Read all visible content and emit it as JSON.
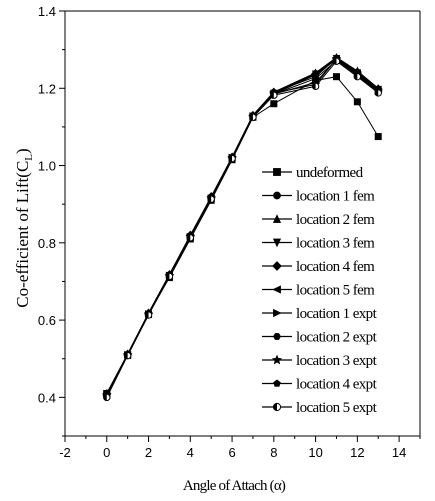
{
  "chart_data": {
    "type": "line",
    "xlabel": "Angle of Attach (α)",
    "ylabel": "Co-efficient of Lift(C",
    "ylabel_sub": "L",
    "ylabel_close": ")",
    "xlim": [
      -2,
      15
    ],
    "ylim": [
      0.3,
      1.4
    ],
    "xticks": [
      "-2",
      "0",
      "2",
      "4",
      "6",
      "8",
      "10",
      "12",
      "14"
    ],
    "yticks": [
      "0.4",
      "0.6",
      "0.8",
      "1.0",
      "1.2",
      "1.4"
    ],
    "legend_position": "center-right",
    "series": [
      {
        "name": "undeformed",
        "marker": "square",
        "x": [
          0,
          1,
          2,
          3,
          4,
          5,
          6,
          7,
          8,
          10,
          11,
          12,
          13
        ],
        "y": [
          0.41,
          0.51,
          0.615,
          0.71,
          0.81,
          0.91,
          1.015,
          1.125,
          1.16,
          1.22,
          1.23,
          1.165,
          1.075
        ]
      },
      {
        "name": "location 1 fem",
        "marker": "circle",
        "x": [
          0,
          1,
          2,
          3,
          4,
          5,
          6,
          7,
          8,
          10,
          11,
          12,
          13
        ],
        "y": [
          0.405,
          0.51,
          0.615,
          0.715,
          0.815,
          0.915,
          1.02,
          1.128,
          1.185,
          1.235,
          1.275,
          1.235,
          1.195
        ]
      },
      {
        "name": "location 2 fem",
        "marker": "triangle-up",
        "x": [
          0,
          1,
          2,
          3,
          4,
          5,
          6,
          7,
          8,
          10,
          11,
          12,
          13
        ],
        "y": [
          0.41,
          0.512,
          0.618,
          0.718,
          0.818,
          0.918,
          1.022,
          1.13,
          1.19,
          1.24,
          1.28,
          1.245,
          1.2
        ]
      },
      {
        "name": "location 3 fem",
        "marker": "triangle-down",
        "x": [
          0,
          1,
          2,
          3,
          4,
          5,
          6,
          7,
          8,
          10,
          11,
          12,
          13
        ],
        "y": [
          0.405,
          0.51,
          0.615,
          0.715,
          0.815,
          0.915,
          1.02,
          1.128,
          1.187,
          1.237,
          1.277,
          1.24,
          1.197
        ]
      },
      {
        "name": "location 4 fem",
        "marker": "diamond",
        "x": [
          0,
          1,
          2,
          3,
          4,
          5,
          6,
          7,
          8,
          10,
          11,
          12,
          13
        ],
        "y": [
          0.41,
          0.512,
          0.618,
          0.718,
          0.82,
          0.92,
          1.022,
          1.13,
          1.19,
          1.238,
          1.278,
          1.242,
          1.198
        ]
      },
      {
        "name": "location 5 fem",
        "marker": "triangle-left",
        "x": [
          0,
          1,
          2,
          3,
          4,
          5,
          6,
          7,
          8,
          10,
          11,
          12,
          13
        ],
        "y": [
          0.405,
          0.508,
          0.615,
          0.715,
          0.815,
          0.915,
          1.02,
          1.128,
          1.186,
          1.236,
          1.276,
          1.238,
          1.196
        ]
      },
      {
        "name": "location 1 expt",
        "marker": "triangle-right",
        "x": [
          0,
          1,
          2,
          3,
          4,
          5,
          6,
          7,
          8,
          10,
          11,
          12,
          13
        ],
        "y": [
          0.41,
          0.51,
          0.616,
          0.716,
          0.816,
          0.916,
          1.021,
          1.128,
          1.185,
          1.225,
          1.272,
          1.235,
          1.192
        ]
      },
      {
        "name": "location 2 expt",
        "marker": "hexagon",
        "x": [
          0,
          1,
          2,
          3,
          4,
          5,
          6,
          7,
          8,
          10,
          11,
          12,
          13
        ],
        "y": [
          0.405,
          0.51,
          0.615,
          0.715,
          0.815,
          0.915,
          1.02,
          1.127,
          1.185,
          1.215,
          1.275,
          1.232,
          1.19
        ]
      },
      {
        "name": "location 3 expt",
        "marker": "star",
        "x": [
          0,
          1,
          2,
          3,
          4,
          5,
          6,
          7,
          8,
          10,
          11,
          12,
          13
        ],
        "y": [
          0.405,
          0.51,
          0.615,
          0.715,
          0.815,
          0.915,
          1.02,
          1.127,
          1.187,
          1.21,
          1.276,
          1.236,
          1.192
        ]
      },
      {
        "name": "location 4 expt",
        "marker": "pentagon",
        "x": [
          0,
          1,
          2,
          3,
          4,
          5,
          6,
          7,
          8,
          10,
          11,
          12,
          13
        ],
        "y": [
          0.41,
          0.512,
          0.617,
          0.717,
          0.818,
          0.918,
          1.021,
          1.13,
          1.19,
          1.23,
          1.278,
          1.24,
          1.195
        ]
      },
      {
        "name": "location 5 expt",
        "marker": "circle-half",
        "x": [
          0,
          1,
          2,
          3,
          4,
          5,
          6,
          7,
          8,
          10,
          11,
          12,
          13
        ],
        "y": [
          0.4,
          0.508,
          0.613,
          0.713,
          0.813,
          0.913,
          1.018,
          1.125,
          1.182,
          1.205,
          1.27,
          1.23,
          1.188
        ]
      }
    ]
  }
}
